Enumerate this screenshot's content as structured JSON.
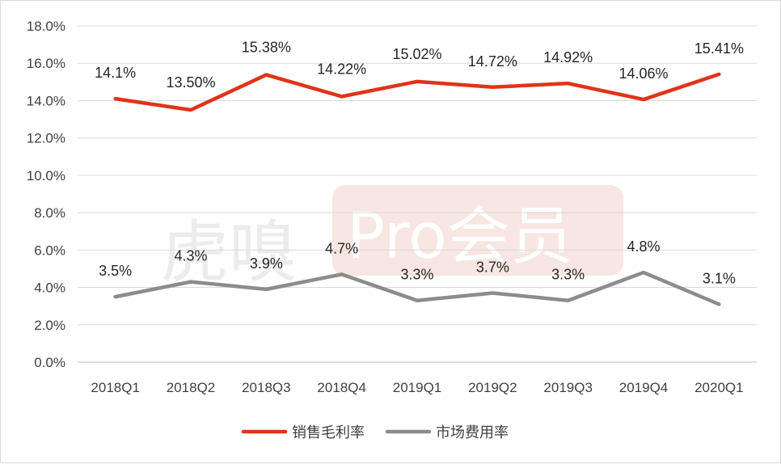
{
  "colors": {
    "sales_margin": "#e0341a",
    "marketing_rate": "#8c8c8c",
    "grid": "#d9d9d9",
    "watermark_box": "#f7e6e1"
  },
  "watermark": {
    "brand": "虎嗅",
    "badge": "Pro会员"
  },
  "chart_data": {
    "type": "line",
    "categories": [
      "2018Q1",
      "2018Q2",
      "2018Q3",
      "2018Q4",
      "2019Q1",
      "2019Q2",
      "2019Q3",
      "2019Q4",
      "2020Q1"
    ],
    "ylim": [
      0,
      18
    ],
    "yticks": [
      "0.0%",
      "2.0%",
      "4.0%",
      "6.0%",
      "8.0%",
      "10.0%",
      "12.0%",
      "14.0%",
      "16.0%",
      "18.0%"
    ],
    "grid": true,
    "legend_position": "bottom",
    "series": [
      {
        "name": "销售毛利率",
        "values": [
          14.1,
          13.5,
          15.38,
          14.22,
          15.02,
          14.72,
          14.92,
          14.06,
          15.41
        ],
        "labels": [
          "14.1%",
          "13.50%",
          "15.38%",
          "14.22%",
          "15.02%",
          "14.72%",
          "14.92%",
          "14.06%",
          "15.41%"
        ]
      },
      {
        "name": "市场费用率",
        "values": [
          3.5,
          4.3,
          3.9,
          4.7,
          3.3,
          3.7,
          3.3,
          4.8,
          3.1
        ],
        "labels": [
          "3.5%",
          "4.3%",
          "3.9%",
          "4.7%",
          "3.3%",
          "3.7%",
          "3.3%",
          "4.8%",
          "3.1%"
        ]
      }
    ]
  }
}
